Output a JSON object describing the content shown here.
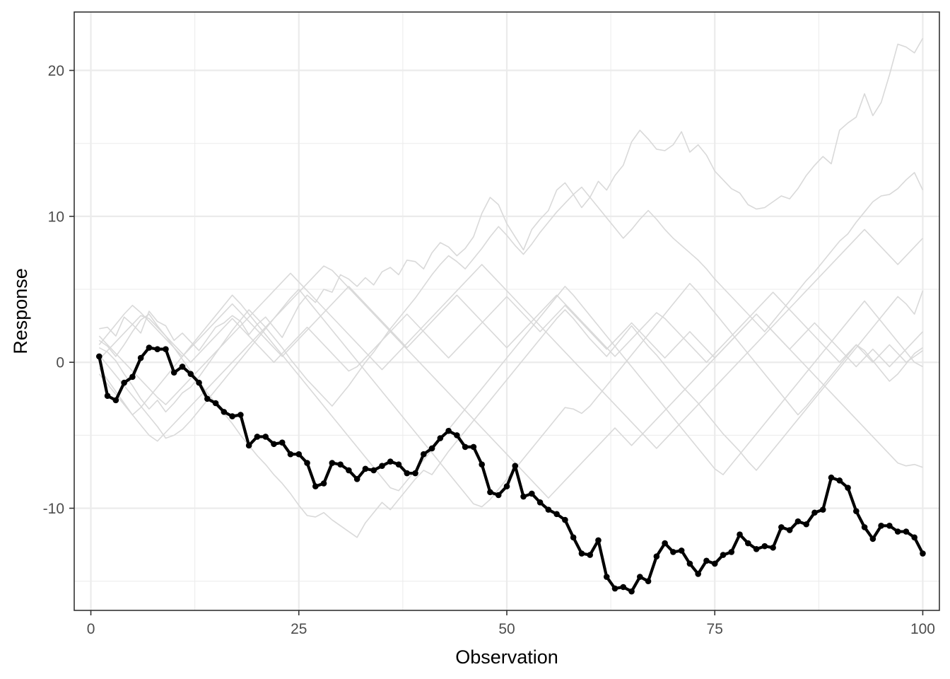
{
  "chart_data": {
    "type": "line",
    "title": "",
    "xlabel": "Observation",
    "ylabel": "Response",
    "xlim": [
      -2,
      102
    ],
    "ylim": [
      -17,
      24
    ],
    "x_ticks": [
      0,
      25,
      50,
      75,
      100
    ],
    "x_tick_labels": [
      "0",
      "25",
      "50",
      "75",
      "100"
    ],
    "y_ticks": [
      -10,
      0,
      10,
      20
    ],
    "y_tick_labels": [
      "-10",
      "0",
      "10",
      "20"
    ],
    "grid": true,
    "legend": "none",
    "colors": {
      "highlight": "#000000",
      "background_series": "#d9d9d9",
      "grid": "#ebebeb",
      "panel_border": "#333333"
    },
    "highlight_series": {
      "x_start": 1,
      "x_step": 1,
      "values": [
        0.4,
        -2.3,
        -2.6,
        -1.4,
        -1.0,
        0.3,
        1.0,
        0.9,
        0.9,
        -0.7,
        -0.3,
        -0.8,
        -1.4,
        -2.5,
        -2.8,
        -3.4,
        -3.7,
        -3.6,
        -5.7,
        -5.1,
        -5.1,
        -5.6,
        -5.5,
        -6.3,
        -6.3,
        -6.9,
        -8.5,
        -8.3,
        -6.9,
        -7.0,
        -7.4,
        -8.0,
        -7.3,
        -7.4,
        -7.1,
        -6.8,
        -7.0,
        -7.6,
        -7.6,
        -6.3,
        -5.9,
        -5.2,
        -4.7,
        -5.0,
        -5.8,
        -5.8,
        -7.0,
        -8.9,
        -9.1,
        -8.5,
        -7.1,
        -9.2,
        -9.0,
        -9.6,
        -10.1,
        -10.4,
        -10.8,
        -12.0,
        -13.1,
        -13.2,
        -12.2,
        -14.7,
        -15.5,
        -15.4,
        -15.7,
        -14.7,
        -15.0,
        -13.3,
        -12.4,
        -13.0,
        -12.9,
        -13.8,
        -14.5,
        -13.6,
        -13.8,
        -13.2,
        -13.0,
        -11.8,
        -12.4,
        -12.8,
        -12.6,
        -12.7,
        -11.3,
        -11.5,
        -10.9,
        -11.1,
        -10.3,
        -10.1,
        -7.9,
        -8.1,
        -8.6,
        -10.2,
        -11.3,
        -12.1,
        -11.2,
        -11.2,
        -11.6,
        -11.6,
        -12.0,
        -13.1
      ]
    },
    "background_series": [
      {
        "values": [
          2.3,
          2.4,
          1.8,
          3.1,
          2.6,
          2.0,
          3.5,
          2.8,
          2.5,
          1.5,
          2.0,
          1.4,
          0.8,
          1.6,
          2.4,
          2.7,
          3.2,
          2.8,
          1.9,
          2.6,
          3.1,
          2.4,
          1.7,
          2.8,
          3.9,
          4.6,
          4.1,
          5.0,
          4.8,
          6.0,
          5.7,
          5.2,
          5.8,
          5.3,
          6.2,
          6.5,
          6.0,
          7.0,
          6.9,
          6.4,
          7.5,
          8.2,
          7.9,
          7.3,
          7.8,
          8.6,
          10.2,
          11.3,
          10.8,
          9.5,
          8.6,
          7.7,
          9.1,
          9.8,
          10.4,
          11.8,
          12.3,
          11.5,
          10.6,
          11.3,
          12.4,
          11.8,
          12.8,
          13.5,
          15.1,
          15.9,
          15.3,
          14.6,
          14.5,
          14.9,
          15.8,
          14.4,
          14.9,
          14.2,
          13.1,
          12.5,
          11.9,
          11.6,
          10.8,
          10.5,
          10.6,
          11.0,
          11.4,
          11.2,
          11.9,
          12.8,
          13.5,
          14.1,
          13.6,
          15.9,
          16.4,
          16.8,
          18.4,
          16.9,
          17.8,
          19.7,
          21.8,
          21.6,
          21.2,
          22.2
        ]
      },
      {
        "values": [
          1.0,
          0.7,
          0.1,
          -0.8,
          -1.6,
          -2.5,
          -3.2,
          -2.6,
          -3.4,
          -2.8,
          -2.1,
          -1.7,
          -1.0,
          -0.2,
          0.6,
          1.4,
          2.2,
          2.9,
          3.6,
          3.0,
          2.4,
          1.7,
          1.0,
          0.2,
          -0.5,
          -1.2,
          -1.8,
          -2.4,
          -3.0,
          -2.3,
          -1.6,
          -0.8,
          0.0,
          0.7,
          1.5,
          2.3,
          3.0,
          3.7,
          4.4,
          5.2,
          6.0,
          6.7,
          7.3,
          6.9,
          6.4,
          7.1,
          7.8,
          8.6,
          9.3,
          8.7,
          8.0,
          7.4,
          8.1,
          8.9,
          9.6,
          10.3,
          10.9,
          11.5,
          12.0,
          11.3,
          10.6,
          9.9,
          9.2,
          8.5,
          9.1,
          9.8,
          10.4,
          9.8,
          9.1,
          8.5,
          8.0,
          7.5,
          7.0,
          6.4,
          5.7,
          5.1,
          4.5,
          3.9,
          3.3,
          2.7,
          2.1,
          2.8,
          3.5,
          4.2,
          4.9,
          5.6,
          6.2,
          6.9,
          7.6,
          8.3,
          8.8,
          9.6,
          10.3,
          11.0,
          11.4,
          11.5,
          11.9,
          12.5,
          13.0,
          11.8
        ]
      },
      {
        "values": [
          1.5,
          1.1,
          0.4,
          1.2,
          2.1,
          2.9,
          3.3,
          2.5,
          1.8,
          1.0,
          0.2,
          -0.6,
          -1.3,
          -2.1,
          -2.8,
          -3.5,
          -4.2,
          -5.0,
          -5.7,
          -6.4,
          -7.0,
          -7.7,
          -8.3,
          -9.0,
          -9.8,
          -10.5,
          -10.6,
          -10.3,
          -10.8,
          -11.2,
          -11.6,
          -12.0,
          -11.0,
          -10.3,
          -9.6,
          -10.1,
          -9.4,
          -8.7,
          -8.0,
          -7.4,
          -7.7,
          -6.9,
          -6.1,
          -5.4,
          -4.7,
          -4.0,
          -3.3,
          -2.6,
          -1.9,
          -1.2,
          -0.5,
          0.2,
          0.9,
          1.6,
          2.3,
          3.0,
          3.6,
          3.0,
          2.3,
          1.6,
          1.0,
          0.4,
          1.1,
          1.8,
          2.5,
          1.8,
          1.1,
          0.5,
          -0.2,
          -0.9,
          -1.6,
          -2.2,
          -2.8,
          -3.5,
          -4.2,
          -4.9,
          -5.5,
          -6.1,
          -6.8,
          -7.4,
          -6.7,
          -6.0,
          -5.3,
          -4.6,
          -3.9,
          -3.2,
          -2.5,
          -1.8,
          -1.1,
          -0.4,
          0.3,
          1.0,
          1.7,
          2.4,
          3.1,
          3.8,
          4.5,
          4.0,
          3.3,
          4.9
        ]
      },
      {
        "values": [
          0.5,
          -0.2,
          -0.9,
          -1.6,
          -2.3,
          -3.0,
          -3.7,
          -4.4,
          -5.2,
          -5.0,
          -4.6,
          -4.0,
          -3.3,
          -2.6,
          -1.9,
          -1.2,
          -0.5,
          0.2,
          0.9,
          1.6,
          2.3,
          3.0,
          3.7,
          4.4,
          5.0,
          4.3,
          3.6,
          2.9,
          2.2,
          1.5,
          0.8,
          0.1,
          -0.6,
          -1.3,
          -2.0,
          -2.7,
          -3.4,
          -4.1,
          -4.8,
          -5.5,
          -6.2,
          -6.9,
          -7.6,
          -8.3,
          -9.0,
          -9.7,
          -9.9,
          -9.4,
          -8.7,
          -8.0,
          -7.3,
          -6.6,
          -5.9,
          -5.2,
          -4.5,
          -3.8,
          -3.1,
          -3.2,
          -3.5,
          -3.0,
          -2.3,
          -1.6,
          -0.9,
          -0.2,
          0.5,
          1.2,
          1.9,
          2.6,
          3.3,
          4.0,
          4.7,
          5.4,
          4.8,
          4.1,
          3.4,
          2.7,
          2.0,
          1.3,
          0.6,
          -0.1,
          -0.8,
          -1.5,
          -2.2,
          -2.9,
          -3.6,
          -3.0,
          -2.3,
          -1.6,
          -0.9,
          -0.2,
          0.5,
          1.2,
          0.8,
          0.1,
          -0.6,
          -1.3,
          -0.8,
          -0.1,
          0.6,
          1.0
        ]
      },
      {
        "values": [
          -0.4,
          -1.2,
          -2.0,
          -2.8,
          -3.6,
          -3.1,
          -2.4,
          -1.7,
          -1.0,
          -0.3,
          0.4,
          1.1,
          1.8,
          2.5,
          3.2,
          3.9,
          4.6,
          4.0,
          3.3,
          2.6,
          1.9,
          1.2,
          0.5,
          -0.2,
          -0.9,
          -1.6,
          -2.3,
          -3.0,
          -3.7,
          -4.4,
          -5.1,
          -5.8,
          -6.5,
          -7.2,
          -7.9,
          -8.6,
          -8.8,
          -8.1,
          -7.4,
          -6.7,
          -6.0,
          -5.3,
          -4.6,
          -3.9,
          -3.2,
          -2.5,
          -1.8,
          -1.1,
          -0.4,
          0.3,
          1.0,
          1.7,
          2.4,
          3.1,
          3.8,
          4.5,
          5.2,
          4.6,
          3.9,
          3.2,
          2.5,
          1.8,
          1.1,
          0.4,
          -0.3,
          -1.0,
          -1.7,
          -2.4,
          -3.1,
          -3.8,
          -4.5,
          -5.2,
          -5.9,
          -6.6,
          -7.3,
          -7.7,
          -7.0,
          -6.3,
          -5.6,
          -4.9,
          -4.2,
          -3.5,
          -2.8,
          -2.1,
          -1.4,
          -0.7,
          0.0,
          0.7,
          1.4,
          2.1,
          2.8,
          3.5,
          4.2,
          3.5,
          2.8,
          2.1,
          1.4,
          0.7,
          0.0,
          -0.3
        ]
      },
      {
        "values": [
          1.8,
          1.2,
          0.6,
          0.0,
          -0.6,
          -1.2,
          -1.8,
          -2.4,
          -2.9,
          -2.3,
          -1.7,
          -1.1,
          -0.5,
          0.1,
          0.7,
          1.3,
          1.9,
          2.5,
          3.1,
          3.7,
          4.3,
          4.9,
          5.5,
          6.1,
          5.5,
          4.9,
          4.3,
          3.7,
          3.1,
          2.5,
          1.9,
          1.3,
          0.7,
          0.1,
          -0.5,
          0.1,
          0.7,
          1.3,
          1.9,
          2.5,
          3.1,
          3.7,
          4.3,
          4.9,
          5.5,
          6.1,
          6.7,
          6.1,
          5.5,
          4.9,
          4.3,
          3.7,
          3.1,
          2.5,
          1.9,
          1.3,
          0.7,
          0.1,
          -0.5,
          -1.1,
          -1.7,
          -2.3,
          -2.9,
          -3.5,
          -4.1,
          -4.7,
          -5.3,
          -5.9,
          -5.3,
          -4.7,
          -4.1,
          -3.5,
          -2.9,
          -2.3,
          -1.7,
          -1.1,
          -0.5,
          0.1,
          0.7,
          1.3,
          1.9,
          2.5,
          3.1,
          3.7,
          4.3,
          4.9,
          5.5,
          6.1,
          6.7,
          7.3,
          7.9,
          8.5,
          9.1,
          8.5,
          7.9,
          7.3,
          6.7,
          7.3,
          7.9,
          8.5
        ]
      },
      {
        "values": [
          -0.8,
          -1.5,
          -2.2,
          -2.9,
          -3.6,
          -4.3,
          -5.0,
          -5.4,
          -4.8,
          -4.2,
          -3.6,
          -3.0,
          -2.4,
          -1.8,
          -1.2,
          -0.6,
          0.0,
          0.6,
          1.2,
          1.8,
          2.4,
          3.0,
          3.6,
          4.2,
          4.8,
          5.4,
          6.0,
          6.6,
          6.3,
          5.7,
          5.1,
          4.5,
          3.9,
          3.3,
          2.7,
          2.1,
          1.5,
          0.9,
          0.3,
          -0.3,
          -0.9,
          -1.5,
          -2.1,
          -2.7,
          -3.3,
          -3.9,
          -4.5,
          -5.1,
          -5.7,
          -6.3,
          -6.9,
          -7.5,
          -8.1,
          -8.7,
          -9.3,
          -8.7,
          -8.1,
          -7.5,
          -6.9,
          -6.3,
          -5.7,
          -5.1,
          -4.5,
          -5.1,
          -5.7,
          -5.1,
          -4.5,
          -3.9,
          -3.3,
          -2.7,
          -2.1,
          -1.5,
          -0.9,
          -0.3,
          0.3,
          0.9,
          1.5,
          2.1,
          2.7,
          3.3,
          2.7,
          2.1,
          1.5,
          0.9,
          0.3,
          -0.3,
          -0.9,
          -1.5,
          -2.1,
          -2.7,
          -3.3,
          -3.9,
          -4.5,
          -5.1,
          -5.7,
          -6.3,
          -6.9,
          -7.1,
          -7.0,
          -7.2
        ]
      },
      {
        "values": [
          0.2,
          0.8,
          1.4,
          2.0,
          2.6,
          3.2,
          3.0,
          2.4,
          1.8,
          1.2,
          0.6,
          0.0,
          0.6,
          1.2,
          1.8,
          2.4,
          3.0,
          2.4,
          1.8,
          1.2,
          0.6,
          0.0,
          0.6,
          1.2,
          1.8,
          2.4,
          1.8,
          1.2,
          0.6,
          0.0,
          -0.6,
          -0.3,
          0.3,
          0.9,
          1.5,
          2.1,
          2.7,
          3.3,
          2.7,
          2.1,
          1.5,
          0.9,
          0.3,
          0.9,
          1.5,
          2.1,
          2.7,
          3.3,
          3.9,
          4.5,
          3.9,
          3.3,
          2.7,
          2.1,
          2.7,
          3.3,
          3.9,
          3.3,
          2.7,
          2.1,
          1.5,
          0.9,
          1.5,
          2.1,
          2.7,
          2.1,
          1.5,
          0.9,
          0.3,
          0.9,
          1.5,
          2.1,
          1.5,
          0.9,
          0.3,
          0.9,
          1.5,
          2.1,
          2.7,
          3.3,
          2.7,
          2.1,
          1.5,
          0.9,
          1.5,
          2.1,
          2.7,
          2.1,
          1.5,
          0.9,
          0.3,
          -0.3,
          0.3,
          0.9,
          0.3,
          -0.3,
          0.3,
          0.9,
          1.5,
          2.1
        ]
      },
      {
        "values": [
          1.2,
          1.9,
          2.6,
          3.3,
          3.9,
          3.4,
          2.8,
          2.2,
          1.6,
          1.0,
          0.4,
          1.0,
          1.6,
          2.2,
          2.8,
          3.4,
          4.0,
          3.4,
          2.8,
          2.2,
          1.6,
          1.0,
          0.4,
          1.0,
          1.6,
          2.2,
          2.8,
          3.4,
          4.0,
          4.6,
          5.2,
          4.6,
          4.0,
          3.4,
          2.8,
          2.2,
          1.6,
          1.0,
          1.6,
          2.2,
          2.8,
          3.4,
          4.0,
          4.6,
          4.0,
          3.4,
          2.8,
          2.2,
          1.6,
          1.0,
          1.6,
          2.2,
          2.8,
          3.4,
          4.0,
          4.6,
          4.0,
          3.4,
          2.8,
          2.2,
          1.6,
          1.0,
          0.4,
          1.0,
          1.6,
          2.2,
          2.8,
          3.4,
          3.0,
          2.4,
          1.8,
          1.2,
          0.6,
          0.0,
          0.6,
          1.2,
          1.8,
          2.4,
          3.0,
          3.6,
          4.2,
          4.8,
          4.2,
          3.6,
          3.0,
          2.4,
          1.8,
          1.2,
          0.6,
          0.0,
          0.6,
          1.2,
          0.6,
          0.0,
          0.6,
          1.2,
          0.6,
          0.0,
          0.4,
          0.8
        ]
      }
    ]
  }
}
